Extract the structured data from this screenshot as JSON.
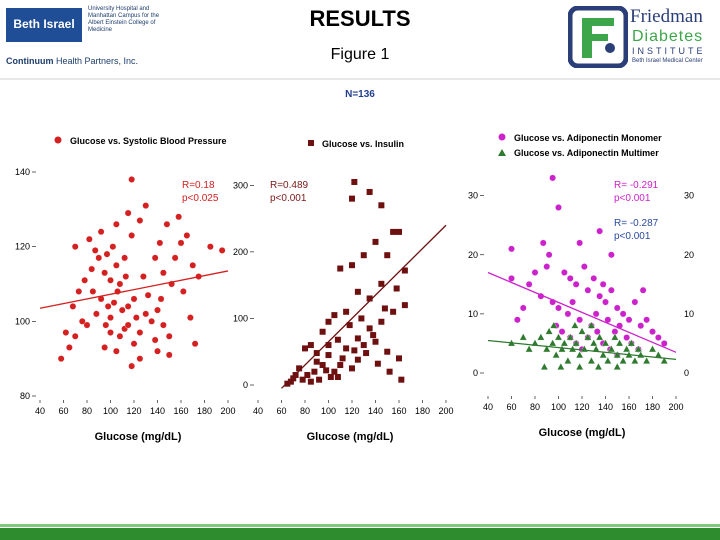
{
  "header": {
    "title": "RESULTS",
    "subtitle": "Figure 1",
    "n_label": "N=136"
  },
  "logo_left": {
    "name": "Beth Israel",
    "side_text": "University Hospital and Manhattan Campus for the Albert Einstein College of Medicine",
    "bottom_bold": "Continuum",
    "bottom_rest": "Health Partners, Inc."
  },
  "logo_right": {
    "line1": "Friedman",
    "line2": "Diabetes",
    "line3": "INSTITUTE",
    "line4": "Beth Israel Medical Center"
  },
  "colors": {
    "red": "#d42020",
    "maroon": "#6e1010",
    "magenta": "#cc22cc",
    "green": "#2e7a2e",
    "stat_red": "#d42020",
    "stat_maroon": "#7a1a1a",
    "stat_magenta": "#cc22cc",
    "stat_blue": "#2a4aa0"
  },
  "chart_data": [
    {
      "type": "scatter",
      "legend": "Glucose vs. Systolic Blood Pressure",
      "xlabel": "Glucose (mg/dL)",
      "xlim": [
        40,
        200
      ],
      "ylim": [
        80,
        140
      ],
      "xticks": [
        40,
        60,
        80,
        100,
        120,
        140,
        160,
        180,
        200
      ],
      "yticks": [
        80,
        100,
        120,
        140
      ],
      "stat_r": "R=0.18",
      "stat_p": "p<0.025",
      "trend": [
        [
          40,
          103.5
        ],
        [
          200,
          113.5
        ]
      ],
      "series": [
        {
          "name": "Glucose vs. Systolic Blood Pressure",
          "marker": "circle",
          "color": "red",
          "points": [
            [
              118,
              138
            ],
            [
              130,
              131
            ],
            [
              82,
              122
            ],
            [
              70,
              120
            ],
            [
              105,
              115
            ],
            [
              95,
              113
            ],
            [
              100,
              111
            ],
            [
              108,
              110
            ],
            [
              85,
              108
            ],
            [
              92,
              106
            ],
            [
              98,
              104
            ],
            [
              110,
              103
            ],
            [
              122,
              101
            ],
            [
              115,
              104
            ],
            [
              103,
              105
            ],
            [
              88,
              102
            ],
            [
              76,
              100
            ],
            [
              96,
              99
            ],
            [
              112,
              98
            ],
            [
              125,
              97
            ],
            [
              135,
              100
            ],
            [
              140,
              103
            ],
            [
              145,
              99
            ],
            [
              150,
              96
            ],
            [
              138,
              95
            ],
            [
              132,
              107
            ],
            [
              128,
              112
            ],
            [
              145,
              113
            ],
            [
              155,
              117
            ],
            [
              160,
              121
            ],
            [
              165,
              123
            ],
            [
              148,
              126
            ],
            [
              158,
              128
            ],
            [
              125,
              127
            ],
            [
              118,
              123
            ],
            [
              102,
              120
            ],
            [
              90,
              117
            ],
            [
              84,
              114
            ],
            [
              78,
              111
            ],
            [
              73,
              108
            ],
            [
              68,
              104
            ],
            [
              62,
              97
            ],
            [
              58,
              90
            ],
            [
              150,
              91
            ],
            [
              140,
              92
            ],
            [
              120,
              94
            ],
            [
              108,
              96
            ],
            [
              100,
              97
            ],
            [
              95,
              93
            ],
            [
              105,
              92
            ],
            [
              115,
              99
            ],
            [
              130,
              102
            ],
            [
              143,
              106
            ],
            [
              152,
              110
            ],
            [
              162,
              108
            ],
            [
              170,
              115
            ],
            [
              175,
              112
            ],
            [
              185,
              120
            ],
            [
              195,
              119
            ],
            [
              112,
              117
            ],
            [
              97,
              118
            ],
            [
              87,
              119
            ],
            [
              92,
              124
            ],
            [
              105,
              126
            ],
            [
              115,
              129
            ],
            [
              138,
              117
            ],
            [
              142,
              121
            ],
            [
              168,
              101
            ],
            [
              172,
              94
            ],
            [
              80,
              99
            ],
            [
              70,
              96
            ],
            [
              65,
              93
            ],
            [
              125,
              90
            ],
            [
              118,
              88
            ],
            [
              100,
              101
            ],
            [
              106,
              108
            ],
            [
              113,
              112
            ],
            [
              120,
              106
            ]
          ]
        }
      ]
    },
    {
      "type": "scatter",
      "legend": "Glucose vs. Insulin",
      "xlabel": "Glucose (mg/dL)",
      "xlim": [
        40,
        200
      ],
      "ylim": [
        0,
        320
      ],
      "xticks": [
        40,
        60,
        80,
        100,
        120,
        140,
        160,
        180,
        200
      ],
      "yticks": [
        0,
        100,
        200,
        300
      ],
      "stat_r": "R=0.489",
      "stat_p": "p<0.001",
      "trend": [
        [
          60,
          -5
        ],
        [
          200,
          240
        ]
      ],
      "series": [
        {
          "name": "Glucose vs. Insulin",
          "marker": "square",
          "color": "maroon",
          "points": [
            [
              120,
              280
            ],
            [
              122,
              305
            ],
            [
              135,
              290
            ],
            [
              145,
              270
            ],
            [
              155,
              230
            ],
            [
              140,
              215
            ],
            [
              150,
              195
            ],
            [
              130,
              195
            ],
            [
              120,
              180
            ],
            [
              110,
              175
            ],
            [
              160,
              230
            ],
            [
              165,
              172
            ],
            [
              145,
              152
            ],
            [
              135,
              130
            ],
            [
              125,
              140
            ],
            [
              115,
              110
            ],
            [
              105,
              105
            ],
            [
              100,
              95
            ],
            [
              95,
              80
            ],
            [
              85,
              60
            ],
            [
              80,
              55
            ],
            [
              70,
              10
            ],
            [
              75,
              25
            ],
            [
              90,
              35
            ],
            [
              100,
              45
            ],
            [
              110,
              30
            ],
            [
              120,
              25
            ],
            [
              130,
              60
            ],
            [
              140,
              65
            ],
            [
              150,
              50
            ],
            [
              160,
              40
            ],
            [
              95,
              30
            ],
            [
              88,
              20
            ],
            [
              82,
              15
            ],
            [
              105,
              20
            ],
            [
              115,
              55
            ],
            [
              125,
              70
            ],
            [
              135,
              85
            ],
            [
              145,
              95
            ],
            [
              155,
              110
            ],
            [
              165,
              120
            ],
            [
              100,
              60
            ],
            [
              90,
              48
            ],
            [
              108,
              68
            ],
            [
              118,
              90
            ],
            [
              128,
              100
            ],
            [
              138,
              75
            ],
            [
              148,
              115
            ],
            [
              158,
              145
            ],
            [
              112,
              40
            ],
            [
              102,
              12
            ],
            [
              92,
              8
            ],
            [
              85,
              5
            ],
            [
              78,
              8
            ],
            [
              68,
              5
            ],
            [
              65,
              2
            ],
            [
              72,
              15
            ],
            [
              98,
              22
            ],
            [
              108,
              12
            ],
            [
              125,
              38
            ],
            [
              142,
              32
            ],
            [
              152,
              20
            ],
            [
              162,
              8
            ],
            [
              132,
              48
            ],
            [
              122,
              52
            ]
          ]
        }
      ]
    },
    {
      "type": "scatter",
      "legend": "Glucose vs. Adiponectin Monomer / Multimer",
      "xlabel": "Glucose (mg/dL)",
      "xlim": [
        40,
        200
      ],
      "ylim": [
        0,
        34
      ],
      "xticks": [
        40,
        60,
        80,
        100,
        120,
        140,
        160,
        180,
        200
      ],
      "yticks": [
        0,
        10,
        20,
        30
      ],
      "annotations": [
        {
          "r": "R= -0.291",
          "p": "p<0.001",
          "color": "stat_magenta"
        },
        {
          "r": "R= -0.287",
          "p": "p<0.001",
          "color": "stat_blue"
        }
      ],
      "trend_monomer": [
        [
          40,
          17
        ],
        [
          200,
          3.5
        ]
      ],
      "trend_multimer": [
        [
          40,
          5.5
        ],
        [
          200,
          2.3
        ]
      ],
      "series": [
        {
          "name": "Glucose vs. Adiponectin Monomer",
          "marker": "circle",
          "color": "magenta",
          "points": [
            [
              95,
              33
            ],
            [
              100,
              28
            ],
            [
              118,
              22
            ],
            [
              60,
              16
            ],
            [
              75,
              15
            ],
            [
              80,
              17
            ],
            [
              90,
              18
            ],
            [
              105,
              17
            ],
            [
              110,
              16
            ],
            [
              115,
              15
            ],
            [
              122,
              18
            ],
            [
              125,
              14
            ],
            [
              130,
              16
            ],
            [
              135,
              13
            ],
            [
              138,
              15
            ],
            [
              140,
              12
            ],
            [
              145,
              14
            ],
            [
              150,
              11
            ],
            [
              155,
              10
            ],
            [
              160,
              9
            ],
            [
              165,
              12
            ],
            [
              170,
              8
            ],
            [
              175,
              9
            ],
            [
              180,
              7
            ],
            [
              185,
              6
            ],
            [
              190,
              5
            ],
            [
              85,
              13
            ],
            [
              95,
              12
            ],
            [
              100,
              11
            ],
            [
              108,
              10
            ],
            [
              112,
              12
            ],
            [
              118,
              9
            ],
            [
              128,
              8
            ],
            [
              132,
              10
            ],
            [
              142,
              9
            ],
            [
              148,
              7
            ],
            [
              152,
              8
            ],
            [
              158,
              6
            ],
            [
              162,
              5
            ],
            [
              168,
              4
            ],
            [
              98,
              8
            ],
            [
              103,
              7
            ],
            [
              110,
              6
            ],
            [
              115,
              5
            ],
            [
              120,
              4
            ],
            [
              125,
              6
            ],
            [
              133,
              7
            ],
            [
              138,
              5
            ],
            [
              144,
              4
            ],
            [
              150,
              3
            ],
            [
              87,
              22
            ],
            [
              92,
              20
            ],
            [
              70,
              11
            ],
            [
              65,
              9
            ],
            [
              60,
              21
            ],
            [
              135,
              24
            ],
            [
              145,
              20
            ],
            [
              172,
              14
            ]
          ]
        },
        {
          "name": "Glucose vs. Adiponectin Multimer",
          "marker": "triangle",
          "color": "green",
          "points": [
            [
              60,
              5
            ],
            [
              70,
              6
            ],
            [
              75,
              4
            ],
            [
              80,
              5
            ],
            [
              85,
              6
            ],
            [
              90,
              4
            ],
            [
              92,
              7
            ],
            [
              95,
              5
            ],
            [
              98,
              3
            ],
            [
              100,
              6
            ],
            [
              103,
              4
            ],
            [
              105,
              5
            ],
            [
              108,
              2
            ],
            [
              110,
              6
            ],
            [
              112,
              4
            ],
            [
              115,
              5
            ],
            [
              118,
              3
            ],
            [
              120,
              7
            ],
            [
              122,
              4
            ],
            [
              125,
              6
            ],
            [
              128,
              2
            ],
            [
              130,
              5
            ],
            [
              132,
              4
            ],
            [
              135,
              6
            ],
            [
              138,
              3
            ],
            [
              140,
              5
            ],
            [
              142,
              2
            ],
            [
              145,
              4
            ],
            [
              148,
              6
            ],
            [
              150,
              3
            ],
            [
              152,
              5
            ],
            [
              155,
              2
            ],
            [
              158,
              4
            ],
            [
              160,
              3
            ],
            [
              162,
              5
            ],
            [
              165,
              2
            ],
            [
              168,
              4
            ],
            [
              170,
              3
            ],
            [
              175,
              2
            ],
            [
              180,
              4
            ],
            [
              185,
              3
            ],
            [
              190,
              2
            ],
            [
              88,
              1
            ],
            [
              102,
              1
            ],
            [
              118,
              1
            ],
            [
              134,
              1
            ],
            [
              150,
              1
            ],
            [
              96,
              8
            ],
            [
              114,
              8
            ],
            [
              128,
              8
            ]
          ]
        }
      ]
    }
  ]
}
